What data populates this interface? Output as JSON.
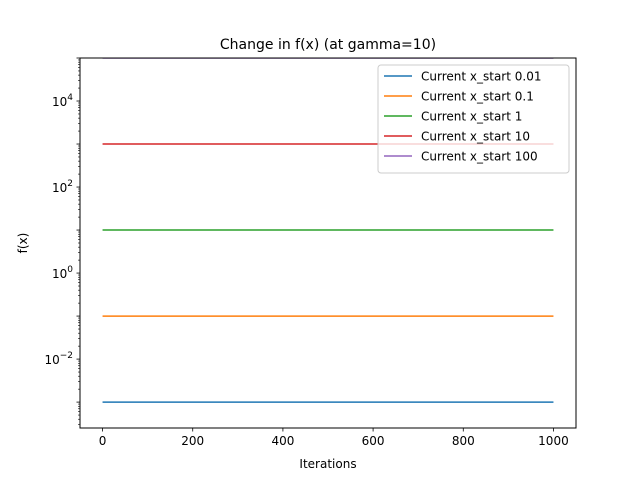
{
  "chart_data": {
    "type": "line",
    "title": "Change in f(x) (at gamma=10)",
    "xlabel": "Iterations",
    "ylabel": "f(x)",
    "yscale": "log",
    "xlim": [
      -50,
      1050
    ],
    "ylim": [
      0.00025,
      100000
    ],
    "grid": false,
    "legend_position": "top-right",
    "x_ticks": [
      {
        "value": 0,
        "label": "0"
      },
      {
        "value": 200,
        "label": "200"
      },
      {
        "value": 400,
        "label": "400"
      },
      {
        "value": 600,
        "label": "600"
      },
      {
        "value": 800,
        "label": "800"
      },
      {
        "value": 1000,
        "label": "1000"
      }
    ],
    "y_ticks": [
      {
        "value": 0.01,
        "base": "10",
        "exp": "−2"
      },
      {
        "value": 1,
        "base": "10",
        "exp": "0"
      },
      {
        "value": 100,
        "base": "10",
        "exp": "2"
      },
      {
        "value": 10000,
        "base": "10",
        "exp": "4"
      }
    ],
    "x": [
      0,
      1000
    ],
    "series": [
      {
        "name": "Current x_start 0.01",
        "color": "#1f77b4",
        "values": [
          0.001,
          0.001
        ]
      },
      {
        "name": "Current x_start 0.1",
        "color": "#ff7f0e",
        "values": [
          0.1,
          0.1
        ]
      },
      {
        "name": "Current x_start 1",
        "color": "#2ca02c",
        "values": [
          10,
          10
        ]
      },
      {
        "name": "Current x_start 10",
        "color": "#d62728",
        "values": [
          1000,
          1000
        ]
      },
      {
        "name": "Current x_start 100",
        "color": "#9467bd",
        "values": [
          100000,
          100000
        ]
      }
    ]
  }
}
